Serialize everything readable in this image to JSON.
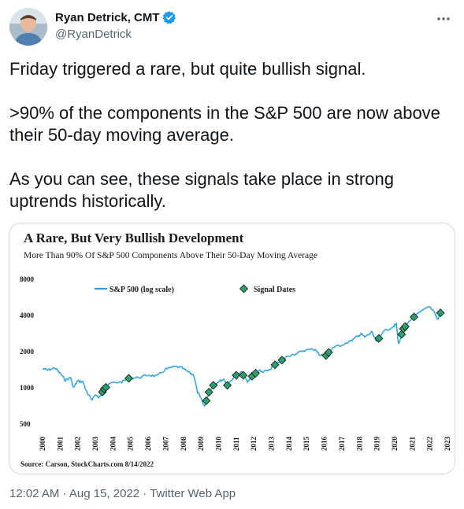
{
  "author": {
    "name": "Ryan Detrick, CMT",
    "handle": "@RyanDetrick",
    "verified_color": "#1d9bf0"
  },
  "more_icon": "more-dots-icon",
  "tweet": {
    "paragraphs": [
      "Friday triggered a rare, but quite bullish signal.",
      ">90% of the components in the S&P 500 are now above their 50-day moving average.",
      "As you can see, these signals take place in strong uptrends historically."
    ],
    "timestamp": "12:02 AM · Aug 15, 2022 · Twitter Web App"
  },
  "chart_data": {
    "type": "line",
    "title": "A Rare, But Very Bullish Development",
    "subtitle": "More Than 90% Of S&P 500 Components Above Their 50-Day Moving Average",
    "source": "Source: Carson, StockCharts.com 8/14/2022",
    "y_scale": "log",
    "ylim": [
      500,
      8000
    ],
    "yticks": [
      "500",
      "1000",
      "2000",
      "4000",
      "8000"
    ],
    "xlim": [
      2000,
      2023
    ],
    "xticks": [
      "2000",
      "2001",
      "2002",
      "2003",
      "2004",
      "2005",
      "2006",
      "2007",
      "2008",
      "2009",
      "2010",
      "2011",
      "2012",
      "2013",
      "2014",
      "2015",
      "2016",
      "2017",
      "2018",
      "2019",
      "2020",
      "2021",
      "2022",
      "2023"
    ],
    "legend": [
      "S&P 500 (log scale)",
      "Signal Dates"
    ],
    "legend_position": "top",
    "series_color": "#2aa3e6",
    "signal_color": "#2e9e6b",
    "series": [
      {
        "name": "S&P 500 (log scale)",
        "points": [
          [
            2000.0,
            1450
          ],
          [
            2000.3,
            1400
          ],
          [
            2000.7,
            1470
          ],
          [
            2001.0,
            1320
          ],
          [
            2001.3,
            1160
          ],
          [
            2001.6,
            1220
          ],
          [
            2001.75,
            1000
          ],
          [
            2002.0,
            1140
          ],
          [
            2002.3,
            1120
          ],
          [
            2002.55,
            890
          ],
          [
            2002.8,
            800
          ],
          [
            2003.0,
            880
          ],
          [
            2003.2,
            820
          ],
          [
            2003.5,
            980
          ],
          [
            2003.9,
            1100
          ],
          [
            2004.5,
            1120
          ],
          [
            2004.9,
            1200
          ],
          [
            2005.5,
            1220
          ],
          [
            2006.0,
            1280
          ],
          [
            2006.5,
            1250
          ],
          [
            2007.0,
            1430
          ],
          [
            2007.5,
            1500
          ],
          [
            2007.9,
            1470
          ],
          [
            2008.3,
            1350
          ],
          [
            2008.6,
            1270
          ],
          [
            2008.8,
            920
          ],
          [
            2008.95,
            850
          ],
          [
            2009.2,
            700
          ],
          [
            2009.45,
            920
          ],
          [
            2009.7,
            1050
          ],
          [
            2010.0,
            1130
          ],
          [
            2010.3,
            1180
          ],
          [
            2010.5,
            1050
          ],
          [
            2010.9,
            1250
          ],
          [
            2011.3,
            1340
          ],
          [
            2011.65,
            1120
          ],
          [
            2011.9,
            1250
          ],
          [
            2012.3,
            1400
          ],
          [
            2012.5,
            1340
          ],
          [
            2012.9,
            1420
          ],
          [
            2013.3,
            1600
          ],
          [
            2013.6,
            1700
          ],
          [
            2013.9,
            1840
          ],
          [
            2014.5,
            1950
          ],
          [
            2014.9,
            2060
          ],
          [
            2015.5,
            2100
          ],
          [
            2015.7,
            1900
          ],
          [
            2016.1,
            1860
          ],
          [
            2016.5,
            2170
          ],
          [
            2016.9,
            2250
          ],
          [
            2017.5,
            2450
          ],
          [
            2017.9,
            2680
          ],
          [
            2018.1,
            2800
          ],
          [
            2018.3,
            2650
          ],
          [
            2018.7,
            2900
          ],
          [
            2018.98,
            2400
          ],
          [
            2019.3,
            2900
          ],
          [
            2019.9,
            3230
          ],
          [
            2020.1,
            3380
          ],
          [
            2020.22,
            2300
          ],
          [
            2020.5,
            3100
          ],
          [
            2020.9,
            3700
          ],
          [
            2021.5,
            4300
          ],
          [
            2021.98,
            4770
          ],
          [
            2022.2,
            4400
          ],
          [
            2022.45,
            3700
          ],
          [
            2022.6,
            4200
          ]
        ]
      },
      {
        "name": "Signal Dates",
        "x": [
          2003.4,
          2003.5,
          2003.6,
          2004.9,
          2009.3,
          2009.45,
          2009.7,
          2010.5,
          2011.0,
          2011.4,
          2011.9,
          2012.1,
          2013.2,
          2013.6,
          2016.1,
          2016.25,
          2019.1,
          2020.4,
          2020.5,
          2020.6,
          2021.1,
          2022.6
        ]
      }
    ]
  }
}
